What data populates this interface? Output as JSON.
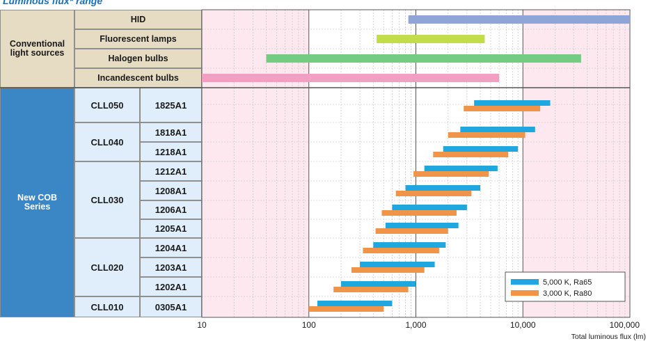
{
  "title": "Luminous flux* range",
  "group_conventional": "Conventional light sources",
  "group_cob": "New COB Series",
  "conventional": [
    {
      "label": "HID",
      "min": 850,
      "max": 100000
    },
    {
      "label": "Fluorescent lamps",
      "min": 430,
      "max": 4400
    },
    {
      "label": "Halogen bulbs",
      "min": 40,
      "max": 35000
    },
    {
      "label": "Incandescent bulbs",
      "min": 10,
      "max": 6000
    }
  ],
  "series_cob": [
    {
      "family": "CLL050",
      "model": "1825A1"
    },
    {
      "family": "CLL040",
      "model": "1818A1"
    },
    {
      "family": "CLL040",
      "model": "1218A1"
    },
    {
      "family": "CLL030",
      "model": "1212A1"
    },
    {
      "family": "CLL030",
      "model": "1208A1"
    },
    {
      "family": "CLL030",
      "model": "1206A1"
    },
    {
      "family": "CLL030",
      "model": "1205A1"
    },
    {
      "family": "CLL020",
      "model": "1204A1"
    },
    {
      "family": "CLL020",
      "model": "1203A1"
    },
    {
      "family": "CLL020",
      "model": "1202A1"
    },
    {
      "family": "CLL010",
      "model": "0305A1"
    }
  ],
  "families": [
    {
      "name": "CLL050",
      "rows": 1
    },
    {
      "name": "CLL040",
      "rows": 2
    },
    {
      "name": "CLL030",
      "rows": 4
    },
    {
      "name": "CLL020",
      "rows": 3
    },
    {
      "name": "CLL010",
      "rows": 1
    }
  ],
  "chart_data": {
    "type": "bar",
    "orientation": "horizontal-range",
    "x_scale": "log",
    "xlim": [
      10,
      100000
    ],
    "x_ticks": [
      "10",
      "100",
      "1,000",
      "10,000",
      "100,000"
    ],
    "x_tick_values": [
      10,
      100,
      1000,
      10000,
      100000
    ],
    "xlabel": "Total luminous flux (lm)",
    "legend_position": "bottom-right",
    "series": [
      {
        "name": "5,000 K, Ra65",
        "color": "#1fa7e0",
        "ranges": [
          [
            3500,
            18000
          ],
          [
            2600,
            13000
          ],
          [
            1800,
            9000
          ],
          [
            1200,
            5800
          ],
          [
            800,
            4000
          ],
          [
            600,
            3000
          ],
          [
            520,
            2500
          ],
          [
            400,
            1900
          ],
          [
            300,
            1500
          ],
          [
            200,
            1000
          ],
          [
            120,
            600
          ]
        ]
      },
      {
        "name": "3,000 K, Ra80",
        "color": "#f0944a",
        "ranges": [
          [
            2800,
            14500
          ],
          [
            2000,
            10500
          ],
          [
            1450,
            7300
          ],
          [
            950,
            4800
          ],
          [
            650,
            3300
          ],
          [
            480,
            2400
          ],
          [
            420,
            2000
          ],
          [
            320,
            1650
          ],
          [
            250,
            1200
          ],
          [
            170,
            850
          ],
          [
            100,
            500
          ]
        ]
      }
    ],
    "conventional_colors": [
      "#8fa5d8",
      "#c3dc4a",
      "#74cc82",
      "#f2a0c2"
    ]
  }
}
